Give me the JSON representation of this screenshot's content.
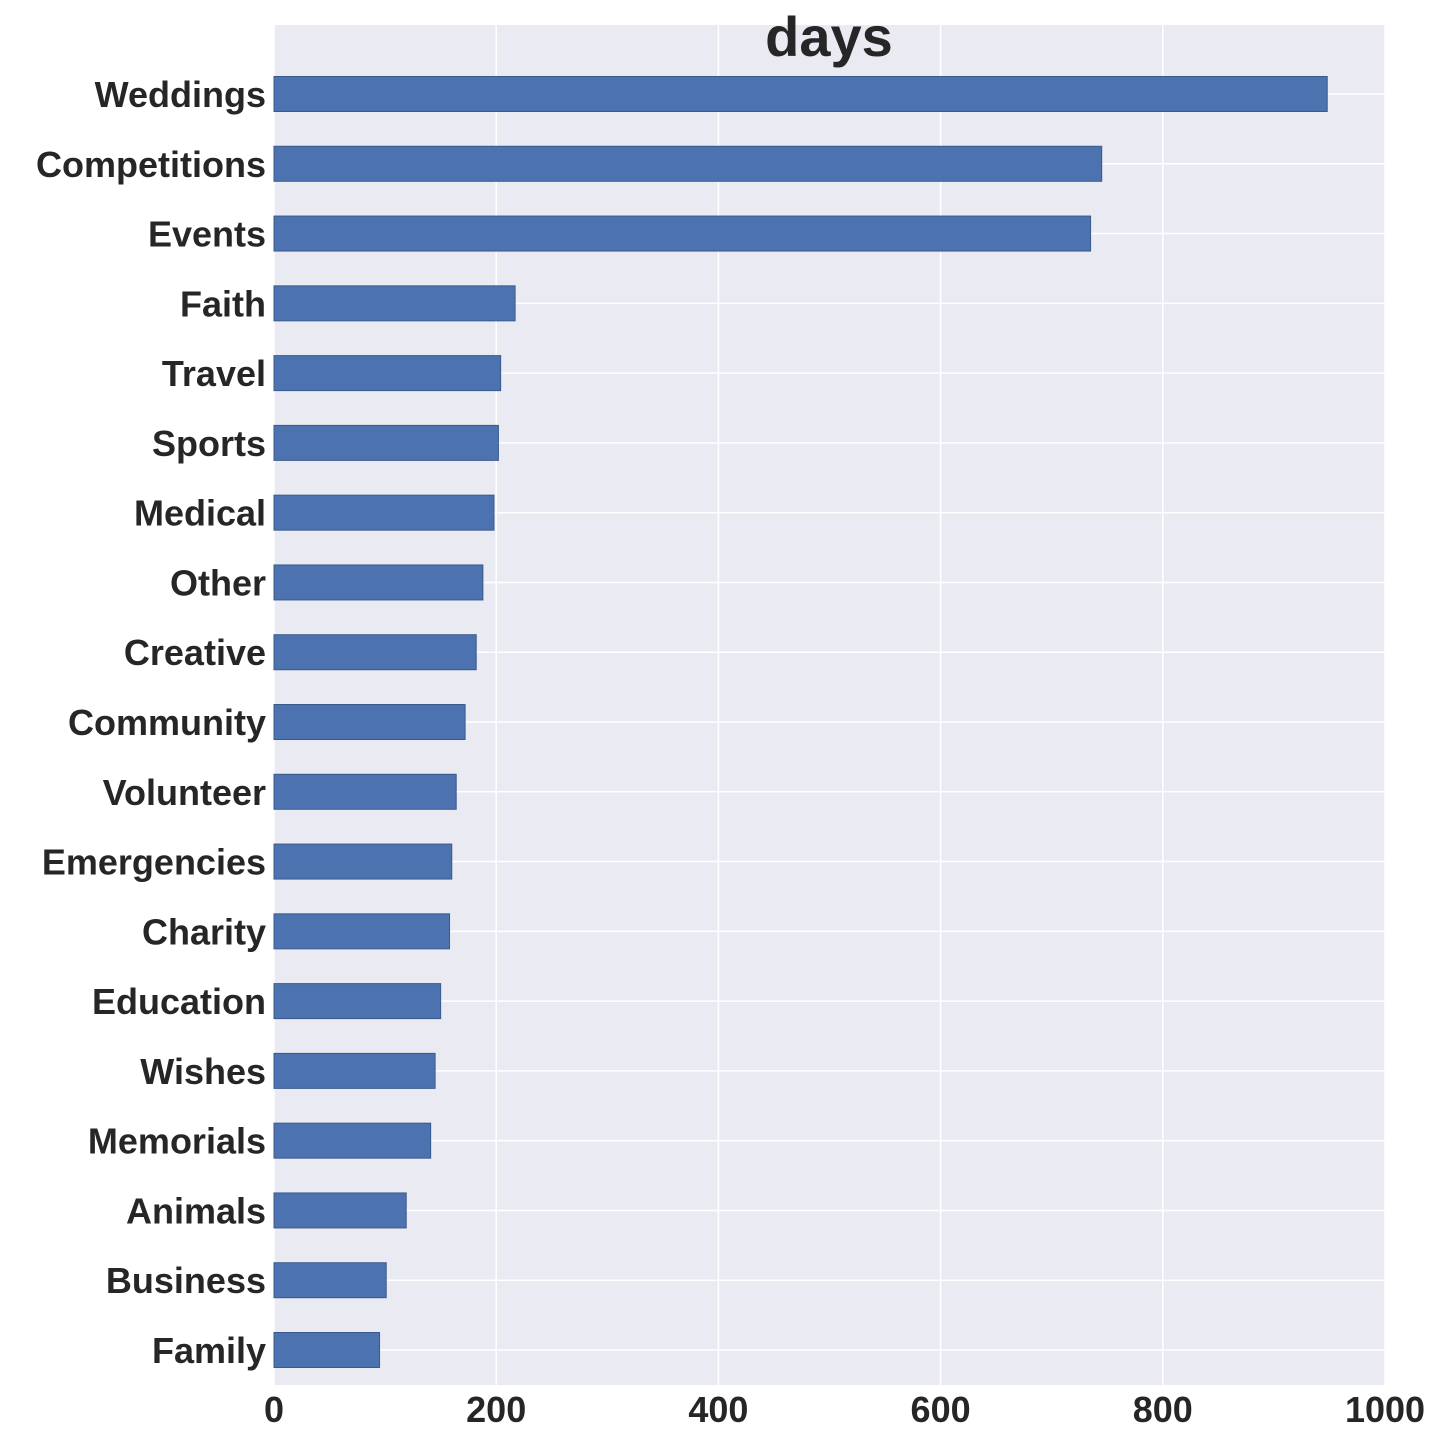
{
  "chart_data": {
    "type": "bar",
    "orientation": "horizontal",
    "title": "days",
    "xlabel": "",
    "ylabel": "",
    "xlim": [
      0,
      1000
    ],
    "xticks": [
      "0",
      "200",
      "400",
      "600",
      "800",
      "1000"
    ],
    "grid": true,
    "categories": [
      "Weddings",
      "Competitions",
      "Events",
      "Faith",
      "Travel",
      "Sports",
      "Medical",
      "Other",
      "Creative",
      "Community",
      "Volunteer",
      "Emergencies",
      "Charity",
      "Education",
      "Wishes",
      "Memorials",
      "Animals",
      "Business",
      "Family"
    ],
    "values": [
      948,
      745,
      735,
      217,
      204,
      202,
      198,
      188,
      182,
      172,
      164,
      160,
      158,
      150,
      145,
      141,
      119,
      101,
      95
    ],
    "colors": {
      "bar": "#4c72b0",
      "bar_edge": "#3a5a8c",
      "plot_background": "#eaeaf2",
      "grid": "#ffffff",
      "text": "#262626"
    }
  }
}
